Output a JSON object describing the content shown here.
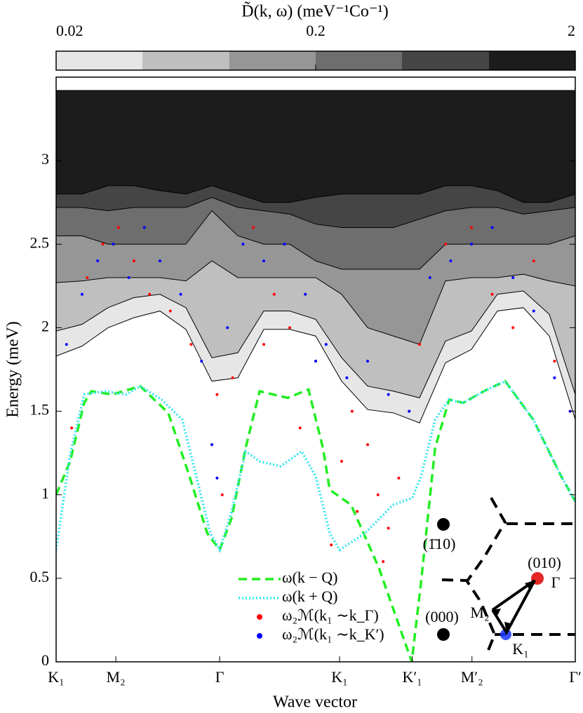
{
  "chart_data": {
    "type": "line",
    "xlabel": "Wave vector",
    "ylabel": "Energy (meV)",
    "xlim": [
      0,
      1
    ],
    "xticks": [
      {
        "value": 0,
        "label": "K₁"
      },
      {
        "value": 0.115,
        "label": "M₂"
      },
      {
        "value": 0.315,
        "label": "Γ"
      },
      {
        "value": 0.546,
        "label": "K₁"
      },
      {
        "value": 0.686,
        "label": "K′₁"
      },
      {
        "value": 0.801,
        "label": "M′₂"
      },
      {
        "value": 1,
        "label": "Γ′"
      }
    ],
    "ylim": [
      0,
      3.5
    ],
    "yticks": [
      0,
      0.5,
      1,
      1.5,
      2,
      2.5,
      3
    ],
    "colorbar": {
      "label": "D̃(k, ω) (meV⁻¹Co⁻¹)",
      "log": true,
      "lim": [
        0.02,
        2
      ],
      "ticks": [
        0.02,
        0.2,
        2
      ],
      "levels": [
        0.02,
        0.043,
        0.093,
        0.2,
        0.43,
        0.93,
        2
      ],
      "colors": [
        "#e6e6e6",
        "#bfbfbf",
        "#969696",
        "#6e6e6e",
        "#454545",
        "#1c1c1c"
      ]
    },
    "contours": {
      "x": [
        0,
        0.05,
        0.1,
        0.15,
        0.2,
        0.25,
        0.3,
        0.35,
        0.4,
        0.45,
        0.5,
        0.55,
        0.6,
        0.65,
        0.7,
        0.75,
        0.8,
        0.85,
        0.9,
        0.95,
        1
      ],
      "upper": [
        3.42,
        3.42,
        3.42,
        3.42,
        3.42,
        3.42,
        3.42,
        3.42,
        3.42,
        3.42,
        3.42,
        3.42,
        3.42,
        3.42,
        3.42,
        3.42,
        3.42,
        3.42,
        3.42,
        3.42,
        3.42
      ],
      "lower": [
        [
          1.83,
          1.89,
          2.0,
          2.06,
          2.1,
          1.99,
          1.68,
          1.7,
          1.99,
          1.99,
          1.95,
          1.68,
          1.51,
          1.49,
          1.43,
          1.79,
          1.87,
          2.1,
          2.12,
          1.95,
          1.45
        ],
        [
          1.98,
          2.02,
          2.12,
          2.18,
          2.2,
          2.12,
          1.82,
          1.85,
          2.1,
          2.1,
          2.05,
          1.82,
          1.65,
          1.62,
          1.58,
          1.92,
          1.98,
          2.2,
          2.22,
          2.08,
          1.6
        ],
        [
          2.27,
          2.28,
          2.3,
          2.3,
          2.3,
          2.28,
          2.4,
          2.3,
          2.3,
          2.3,
          2.3,
          2.2,
          2.0,
          1.95,
          1.9,
          2.28,
          2.3,
          2.3,
          2.32,
          2.28,
          2.25
        ],
        [
          2.55,
          2.55,
          2.5,
          2.5,
          2.5,
          2.5,
          2.7,
          2.55,
          2.5,
          2.5,
          2.4,
          2.35,
          2.35,
          2.35,
          2.35,
          2.5,
          2.5,
          2.5,
          2.5,
          2.5,
          2.55
        ],
        [
          2.72,
          2.72,
          2.7,
          2.72,
          2.72,
          2.72,
          2.78,
          2.72,
          2.7,
          2.68,
          2.62,
          2.6,
          2.6,
          2.6,
          2.65,
          2.7,
          2.72,
          2.72,
          2.68,
          2.7,
          2.72
        ],
        [
          2.8,
          2.8,
          2.85,
          2.85,
          2.82,
          2.8,
          2.85,
          2.8,
          2.75,
          2.75,
          2.78,
          2.8,
          2.8,
          2.8,
          2.8,
          2.85,
          2.85,
          2.82,
          2.75,
          2.75,
          2.8
        ]
      ]
    },
    "series": [
      {
        "name": "ω(k − Q)",
        "color": "#22ee22",
        "style": "dashed",
        "x": [
          0,
          0.027,
          0.054,
          0.068,
          0.108,
          0.162,
          0.216,
          0.257,
          0.291,
          0.315,
          0.338,
          0.365,
          0.392,
          0.446,
          0.486,
          0.514,
          0.527,
          0.568,
          0.622,
          0.685,
          0.703,
          0.73,
          0.757,
          0.784,
          0.824,
          0.865,
          0.919,
          0.973,
          1
        ],
        "values": [
          1.0,
          1.2,
          1.55,
          1.62,
          1.6,
          1.65,
          1.49,
          1.11,
          0.77,
          0.67,
          0.86,
          1.28,
          1.62,
          1.58,
          1.63,
          1.28,
          1.03,
          0.94,
          0.56,
          0,
          0.48,
          1.28,
          1.57,
          1.55,
          1.62,
          1.68,
          1.45,
          1.11,
          0.96
        ]
      },
      {
        "name": "ω(k + Q)",
        "color": "#33e6f0",
        "style": "dotted",
        "x": [
          0,
          0.027,
          0.054,
          0.095,
          0.135,
          0.162,
          0.203,
          0.243,
          0.27,
          0.297,
          0.315,
          0.338,
          0.365,
          0.392,
          0.432,
          0.473,
          0.5,
          0.527,
          0.546,
          0.595,
          0.649,
          0.686,
          0.703,
          0.73,
          0.757,
          0.784,
          0.824,
          0.865,
          0.919,
          0.973,
          1
        ],
        "values": [
          0.67,
          1.24,
          1.6,
          1.62,
          1.6,
          1.65,
          1.57,
          1.45,
          1.11,
          0.77,
          0.67,
          0.9,
          1.26,
          1.2,
          1.17,
          1.26,
          1.11,
          0.77,
          0.67,
          0.77,
          0.94,
          0.98,
          1.11,
          1.45,
          1.57,
          1.55,
          1.62,
          1.68,
          1.45,
          1.11,
          0.96
        ]
      },
      {
        "name": "ω₂ℳ(k₁ ∼k_Γ)",
        "color": "#ff0000",
        "style": "scatter",
        "x": [
          0.03,
          0.06,
          0.09,
          0.12,
          0.15,
          0.18,
          0.22,
          0.26,
          0.3,
          0.32,
          0.34,
          0.38,
          0.42,
          0.45,
          0.5,
          0.55,
          0.58,
          0.6,
          0.62,
          0.64,
          0.66,
          0.68,
          0.7,
          0.75,
          0.8,
          0.84,
          0.88,
          0.92,
          0.96,
          0.99,
          0.31,
          0.4,
          0.47,
          0.53,
          0.57,
          0.63
        ],
        "values": [
          1.4,
          2.3,
          2.5,
          2.6,
          2.4,
          2.2,
          2.1,
          1.9,
          1.3,
          1.0,
          1.7,
          2.6,
          2.2,
          2.0,
          1.8,
          1.2,
          0.9,
          1.3,
          1.0,
          0.8,
          1.1,
          1.5,
          1.9,
          2.5,
          2.6,
          2.2,
          2.0,
          2.4,
          1.8,
          1.5,
          1.6,
          1.9,
          1.4,
          0.7,
          1.5,
          0.6
        ]
      },
      {
        "name": "ω₂ℳ(k₁ ∼k_K′)",
        "color": "#0000ff",
        "style": "scatter",
        "x": [
          0.02,
          0.05,
          0.08,
          0.11,
          0.14,
          0.17,
          0.2,
          0.24,
          0.28,
          0.3,
          0.33,
          0.36,
          0.4,
          0.44,
          0.48,
          0.52,
          0.56,
          0.6,
          0.64,
          0.68,
          0.72,
          0.76,
          0.8,
          0.84,
          0.88,
          0.92,
          0.96,
          0.99,
          0.31,
          0.5
        ],
        "values": [
          1.9,
          2.2,
          2.4,
          2.5,
          2.3,
          2.6,
          2.4,
          2.2,
          1.8,
          1.3,
          2.0,
          2.5,
          2.4,
          2.5,
          2.2,
          1.9,
          1.7,
          1.8,
          1.6,
          1.5,
          2.3,
          2.4,
          2.5,
          2.6,
          2.3,
          2.1,
          1.7,
          1.5,
          1.1,
          1.8
        ]
      }
    ]
  },
  "inset": {
    "labels": [
      "(1̄10)",
      "(000)",
      "(010)",
      "Γ",
      "M₂",
      "K₁"
    ]
  }
}
